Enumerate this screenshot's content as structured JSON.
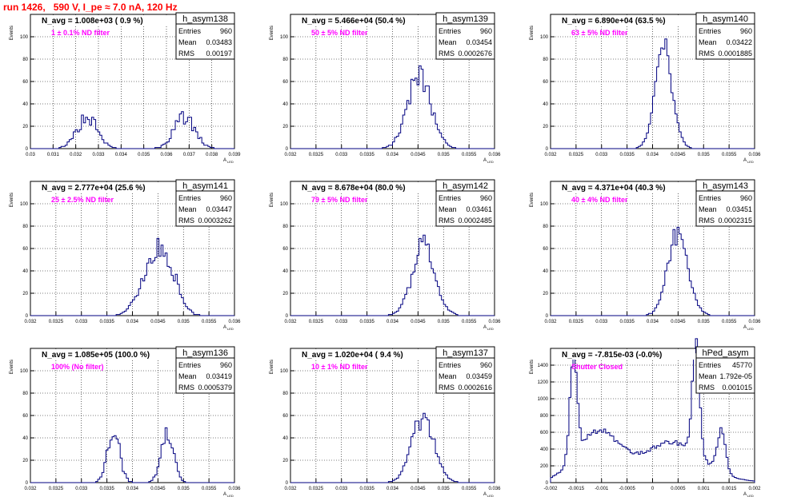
{
  "page_title": "run 1426,   590 V, I_pe ≈ 7.0 nA, 120 Hz",
  "stats_labels": {
    "entries": "Entries",
    "mean": "Mean",
    "rms": "RMS"
  },
  "ylabel": "Events",
  "xlabel": "A",
  "xlabel_sub": "LED",
  "colors": {
    "histogram": "#000080",
    "annotation": "#ff00ff",
    "run_title": "#ff0000",
    "grid": "#000000"
  },
  "chart_data": [
    {
      "type": "bar",
      "name": "h_asym138",
      "header": "N_avg = 1.008e+03 ( 0.9 %)",
      "annotation": "1 ± 0.1% ND filter",
      "entries": "960",
      "mean": "0.03483",
      "rms": "0.00197",
      "xlim": [
        0.03,
        0.039
      ],
      "ylim": [
        0,
        120
      ],
      "xticks": [
        "0.03",
        "0.031",
        "0.032",
        "0.033",
        "0.034",
        "0.035",
        "0.036",
        "0.037",
        "0.038",
        "0.039"
      ],
      "yticks": [
        "0",
        "20",
        "40",
        "60",
        "80",
        "100"
      ],
      "shape": [
        [
          0.0325,
          0.00045,
          28
        ],
        [
          0.0368,
          0.00045,
          28
        ]
      ],
      "noise": 0.25
    },
    {
      "type": "bar",
      "name": "h_asym139",
      "header": "N_avg = 5.466e+04 (50.4 %)",
      "annotation": "50 ± 5% ND filter",
      "entries": "960",
      "mean": "0.03454",
      "rms": "0.0002676",
      "xlim": [
        0.032,
        0.036
      ],
      "ylim": [
        0,
        120
      ],
      "xticks": [
        "0.032",
        "0.0325",
        "0.033",
        "0.0335",
        "0.034",
        "0.0345",
        "0.035",
        "0.0355",
        "0.036"
      ],
      "yticks": [
        "0",
        "20",
        "40",
        "60",
        "80",
        "100"
      ],
      "shape": [
        [
          0.03453,
          0.00023,
          66
        ]
      ],
      "noise": 0.18
    },
    {
      "type": "bar",
      "name": "h_asym140",
      "header": "N_avg = 6.890e+04 (63.5 %)",
      "annotation": "63 ± 5% ND filter",
      "entries": "960",
      "mean": "0.03422",
      "rms": "0.0001885",
      "xlim": [
        0.032,
        0.036
      ],
      "ylim": [
        0,
        120
      ],
      "xticks": [
        "0.032",
        "0.0325",
        "0.033",
        "0.0335",
        "0.034",
        "0.0345",
        "0.035",
        "0.0355",
        "0.036"
      ],
      "yticks": [
        "0",
        "20",
        "40",
        "60",
        "80",
        "100"
      ],
      "shape": [
        [
          0.03422,
          0.00017,
          88
        ]
      ],
      "noise": 0.15
    },
    {
      "type": "bar",
      "name": "h_asym141",
      "header": "N_avg = 2.777e+04 (25.6 %)",
      "annotation": "25 ± 2.5% ND filter",
      "entries": "960",
      "mean": "0.03447",
      "rms": "0.0003262",
      "xlim": [
        0.032,
        0.036
      ],
      "ylim": [
        0,
        120
      ],
      "xticks": [
        "0.032",
        "0.0325",
        "0.033",
        "0.0335",
        "0.034",
        "0.0345",
        "0.035",
        "0.0355",
        "0.036"
      ],
      "yticks": [
        "0",
        "20",
        "40",
        "60",
        "80",
        "100"
      ],
      "shape": [
        [
          0.0343,
          0.00022,
          30
        ],
        [
          0.03465,
          0.00022,
          48
        ]
      ],
      "noise": 0.2
    },
    {
      "type": "bar",
      "name": "h_asym142",
      "header": "N_avg = 8.678e+04 (80.0 %)",
      "annotation": "79 ± 5% ND filter",
      "entries": "960",
      "mean": "0.03461",
      "rms": "0.0002485",
      "xlim": [
        0.032,
        0.036
      ],
      "ylim": [
        0,
        120
      ],
      "xticks": [
        "0.032",
        "0.0325",
        "0.033",
        "0.0335",
        "0.034",
        "0.0345",
        "0.035",
        "0.0355",
        "0.036"
      ],
      "yticks": [
        "0",
        "20",
        "40",
        "60",
        "80",
        "100"
      ],
      "shape": [
        [
          0.03461,
          0.00022,
          64
        ]
      ],
      "noise": 0.16
    },
    {
      "type": "bar",
      "name": "h_asym143",
      "header": "N_avg = 4.371e+04 (40.3 %)",
      "annotation": "40 ± 4% ND filter",
      "entries": "960",
      "mean": "0.03451",
      "rms": "0.0002315",
      "xlim": [
        0.032,
        0.036
      ],
      "ylim": [
        0,
        120
      ],
      "xticks": [
        "0.032",
        "0.0325",
        "0.033",
        "0.0335",
        "0.034",
        "0.0345",
        "0.035",
        "0.0355",
        "0.036"
      ],
      "yticks": [
        "0",
        "20",
        "40",
        "60",
        "80",
        "100"
      ],
      "shape": [
        [
          0.0345,
          0.0002,
          72
        ]
      ],
      "noise": 0.16
    },
    {
      "type": "bar",
      "name": "h_asym136",
      "header": "N_avg = 1.085e+05 (100.0 %)",
      "annotation": "100% (No filter)",
      "entries": "960",
      "mean": "0.03419",
      "rms": "0.0005379",
      "xlim": [
        0.032,
        0.036
      ],
      "ylim": [
        0,
        120
      ],
      "xticks": [
        "0.032",
        "0.0325",
        "0.033",
        "0.0335",
        "0.034",
        "0.0345",
        "0.035",
        "0.0355",
        "0.036"
      ],
      "yticks": [
        "0",
        "20",
        "40",
        "60",
        "80",
        "100"
      ],
      "shape": [
        [
          0.03363,
          0.00012,
          44
        ],
        [
          0.03468,
          0.00012,
          48
        ]
      ],
      "noise": 0.22
    },
    {
      "type": "bar",
      "name": "h_asym137",
      "header": "N_avg = 1.020e+04 ( 9.4 %)",
      "annotation": "10 ± 1% ND filter",
      "entries": "960",
      "mean": "0.03459",
      "rms": "0.0002616",
      "xlim": [
        0.032,
        0.036
      ],
      "ylim": [
        0,
        120
      ],
      "xticks": [
        "0.032",
        "0.0325",
        "0.033",
        "0.0335",
        "0.034",
        "0.0345",
        "0.035",
        "0.0355",
        "0.036"
      ],
      "yticks": [
        "0",
        "20",
        "40",
        "60",
        "80",
        "100"
      ],
      "shape": [
        [
          0.0346,
          0.00022,
          58
        ]
      ],
      "noise": 0.16
    },
    {
      "type": "bar",
      "name": "hPed_asym",
      "header": "N_avg = -7.815e-03 (-0.0%)",
      "annotation": "Shutter Closed",
      "entries": "45770",
      "mean": "1.792e-05",
      "rms": "0.001015",
      "xlim": [
        -0.002,
        0.002
      ],
      "ylim": [
        0,
        1600
      ],
      "xticks": [
        "-0.002",
        "-0.0015",
        "-0.001",
        "-0.0005",
        "0",
        "0.0005",
        "0.001",
        "0.0015",
        "0.002"
      ],
      "yticks": [
        "0",
        "200",
        "400",
        "600",
        "800",
        "1000",
        "1200",
        "1400"
      ],
      "shape": [
        [
          -0.00155,
          7e-05,
          1200
        ],
        [
          0.00085,
          7e-05,
          1400
        ],
        [
          0.00135,
          8e-05,
          500
        ],
        [
          -0.0011,
          0.0004,
          520
        ],
        [
          0.00045,
          0.0005,
          300
        ],
        [
          0.0,
          0.0009,
          200
        ]
      ],
      "noise": 0.06
    }
  ]
}
